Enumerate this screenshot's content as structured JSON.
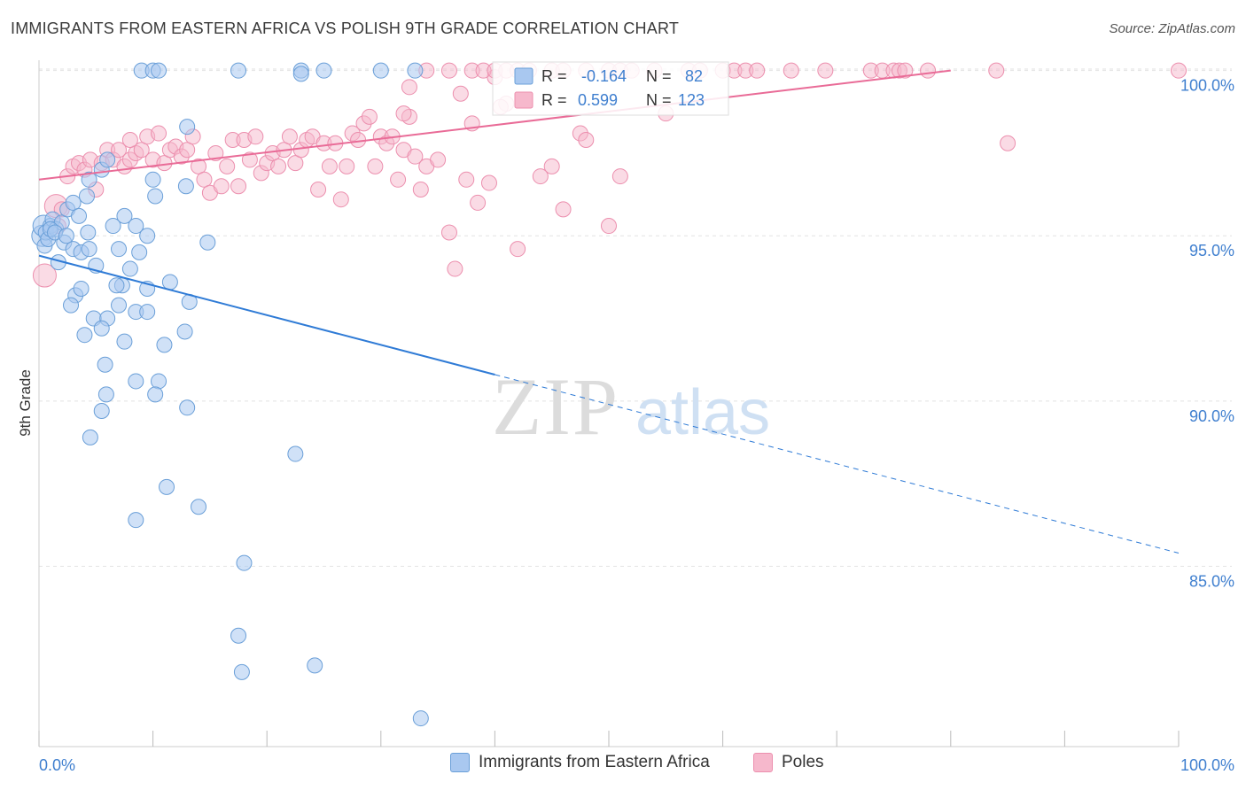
{
  "header": {
    "title": "IMMIGRANTS FROM EASTERN AFRICA VS POLISH 9TH GRADE CORRELATION CHART",
    "source": "Source: ZipAtlas.com"
  },
  "watermark": {
    "zip": "ZIP",
    "atlas": "atlas"
  },
  "colors": {
    "blue_fill": "#a9c8f0",
    "blue_stroke": "#6a9fd8",
    "blue_line": "#2f7bd6",
    "pink_fill": "#f6b8cc",
    "pink_stroke": "#ec8fae",
    "pink_line": "#e96b97",
    "axis_text": "#3f7fcf",
    "grid": "#e2e2e2"
  },
  "stats_box": {
    "rows": [
      {
        "r_label": "R = ",
        "r_value": "-0.164",
        "n_label": "N = ",
        "n_value": "82"
      },
      {
        "r_label": "R = ",
        "r_value": "0.599",
        "n_label": "N = ",
        "n_value": "123"
      }
    ]
  },
  "legend": {
    "items": [
      {
        "label": "Immigrants from Eastern Africa"
      },
      {
        "label": "Poles"
      }
    ]
  },
  "chart_data": {
    "type": "scatter",
    "title": "IMMIGRANTS FROM EASTERN AFRICA VS POLISH 9TH GRADE CORRELATION CHART",
    "xlabel": "",
    "ylabel": "9th Grade",
    "xlim": [
      0,
      100
    ],
    "ylim": [
      80,
      100.5
    ],
    "x_tick_labels": [
      "0.0%",
      "100.0%"
    ],
    "y_ticks": [
      85,
      90,
      95,
      100
    ],
    "y_tick_labels": [
      "85.0%",
      "90.0%",
      "95.0%",
      "100.0%"
    ],
    "grid": true,
    "legend_position": "bottom",
    "series": [
      {
        "name": "Immigrants from Eastern Africa",
        "R": -0.164,
        "N": 82,
        "trend": {
          "x_solid": [
            0,
            40
          ],
          "y_solid": [
            94.4,
            90.8
          ],
          "x_dashed": [
            40,
            100
          ],
          "y_dashed": [
            90.8,
            85.4
          ]
        },
        "points": [
          [
            0.3,
            95.0
          ],
          [
            0.4,
            95.3
          ],
          [
            0.5,
            94.7
          ],
          [
            0.6,
            95.1
          ],
          [
            0.8,
            94.9
          ],
          [
            1.0,
            95.3
          ],
          [
            1.2,
            95.5
          ],
          [
            1.5,
            95.2
          ],
          [
            1.7,
            94.2
          ],
          [
            2.0,
            95.4
          ],
          [
            2.2,
            94.8
          ],
          [
            2.5,
            95.8
          ],
          [
            3.0,
            96.0
          ],
          [
            3.0,
            94.6
          ],
          [
            3.5,
            95.6
          ],
          [
            3.7,
            94.5
          ],
          [
            4.2,
            96.2
          ],
          [
            4.3,
            95.1
          ],
          [
            4.4,
            96.7
          ],
          [
            5.0,
            94.1
          ],
          [
            5.5,
            97.0
          ],
          [
            6.0,
            97.3
          ],
          [
            6.5,
            95.3
          ],
          [
            7.0,
            94.6
          ],
          [
            7.3,
            93.5
          ],
          [
            7.5,
            95.6
          ],
          [
            8.0,
            94.0
          ],
          [
            8.5,
            95.3
          ],
          [
            8.5,
            92.7
          ],
          [
            8.8,
            94.5
          ],
          [
            9.5,
            95.0
          ],
          [
            9.5,
            92.7
          ],
          [
            10.0,
            96.7
          ],
          [
            10.2,
            96.2
          ],
          [
            9.5,
            93.4
          ],
          [
            12.9,
            96.5
          ],
          [
            13.0,
            98.3
          ],
          [
            3.2,
            93.2
          ],
          [
            2.8,
            92.9
          ],
          [
            4.8,
            92.5
          ],
          [
            3.7,
            93.4
          ],
          [
            6.0,
            92.5
          ],
          [
            5.5,
            92.2
          ],
          [
            4.0,
            92.0
          ],
          [
            7.0,
            92.9
          ],
          [
            6.8,
            93.5
          ],
          [
            11.5,
            93.6
          ],
          [
            13.2,
            93.0
          ],
          [
            12.8,
            92.1
          ],
          [
            14.8,
            94.8
          ],
          [
            11.0,
            91.7
          ],
          [
            7.5,
            91.8
          ],
          [
            5.8,
            91.1
          ],
          [
            5.9,
            90.2
          ],
          [
            5.5,
            89.7
          ],
          [
            8.5,
            90.6
          ],
          [
            10.5,
            90.6
          ],
          [
            10.2,
            90.2
          ],
          [
            13.0,
            89.8
          ],
          [
            4.5,
            88.9
          ],
          [
            11.2,
            87.4
          ],
          [
            14.0,
            86.8
          ],
          [
            8.5,
            86.4
          ],
          [
            22.5,
            88.4
          ],
          [
            18.0,
            85.1
          ],
          [
            17.5,
            82.9
          ],
          [
            17.8,
            81.8
          ],
          [
            24.2,
            82.0
          ],
          [
            33.5,
            80.4
          ],
          [
            9.0,
            100.0
          ],
          [
            10.0,
            100.0
          ],
          [
            10.5,
            100.0
          ],
          [
            17.5,
            100.0
          ],
          [
            23.0,
            100.0
          ],
          [
            23.0,
            99.9
          ],
          [
            25.0,
            100.0
          ],
          [
            30.0,
            100.0
          ],
          [
            33.0,
            100.0
          ],
          [
            1.0,
            95.2
          ],
          [
            1.4,
            95.1
          ],
          [
            2.4,
            95.0
          ],
          [
            4.4,
            94.6
          ]
        ]
      },
      {
        "name": "Poles",
        "R": 0.599,
        "N": 123,
        "trend": {
          "x": [
            0,
            80
          ],
          "y": [
            96.7,
            100.0
          ]
        },
        "points": [
          [
            0.5,
            93.8
          ],
          [
            1.5,
            95.9
          ],
          [
            1.7,
            95.3
          ],
          [
            2.0,
            95.8
          ],
          [
            2.5,
            96.8
          ],
          [
            3.0,
            97.1
          ],
          [
            3.5,
            97.2
          ],
          [
            4.0,
            97.0
          ],
          [
            4.5,
            97.3
          ],
          [
            5.0,
            96.4
          ],
          [
            5.5,
            97.2
          ],
          [
            6.0,
            97.6
          ],
          [
            6.5,
            97.3
          ],
          [
            7.0,
            97.6
          ],
          [
            7.5,
            97.1
          ],
          [
            8.0,
            97.3
          ],
          [
            8.5,
            97.5
          ],
          [
            9.0,
            97.6
          ],
          [
            9.5,
            98.0
          ],
          [
            10.0,
            97.3
          ],
          [
            10.5,
            98.1
          ],
          [
            11.0,
            97.2
          ],
          [
            11.5,
            97.6
          ],
          [
            12.0,
            97.7
          ],
          [
            12.5,
            97.4
          ],
          [
            13.0,
            97.6
          ],
          [
            13.5,
            98.0
          ],
          [
            14.0,
            97.1
          ],
          [
            14.5,
            96.7
          ],
          [
            15.0,
            96.3
          ],
          [
            15.5,
            97.5
          ],
          [
            16.0,
            96.5
          ],
          [
            16.5,
            97.1
          ],
          [
            17.0,
            97.9
          ],
          [
            17.5,
            96.5
          ],
          [
            18.0,
            97.9
          ],
          [
            18.5,
            97.3
          ],
          [
            19.0,
            98.0
          ],
          [
            19.5,
            96.9
          ],
          [
            20.0,
            97.2
          ],
          [
            20.5,
            97.5
          ],
          [
            21.0,
            97.1
          ],
          [
            21.5,
            97.6
          ],
          [
            22.0,
            98.0
          ],
          [
            22.5,
            97.2
          ],
          [
            23.0,
            97.6
          ],
          [
            23.5,
            97.9
          ],
          [
            24.0,
            98.0
          ],
          [
            24.5,
            96.4
          ],
          [
            25.0,
            97.8
          ],
          [
            25.5,
            97.1
          ],
          [
            26.0,
            97.8
          ],
          [
            26.5,
            96.1
          ],
          [
            27.0,
            97.1
          ],
          [
            27.5,
            98.1
          ],
          [
            28.0,
            97.9
          ],
          [
            28.5,
            98.4
          ],
          [
            29.0,
            98.6
          ],
          [
            29.5,
            97.1
          ],
          [
            30.0,
            98.0
          ],
          [
            30.5,
            97.8
          ],
          [
            31.0,
            98.0
          ],
          [
            31.5,
            96.7
          ],
          [
            32.0,
            97.6
          ],
          [
            32.5,
            98.6
          ],
          [
            33.0,
            97.4
          ],
          [
            33.5,
            96.4
          ],
          [
            34.0,
            97.1
          ],
          [
            35.0,
            97.3
          ],
          [
            36.0,
            95.1
          ],
          [
            36.5,
            94.0
          ],
          [
            37.0,
            99.3
          ],
          [
            37.5,
            96.7
          ],
          [
            38.0,
            98.4
          ],
          [
            38.5,
            96.0
          ],
          [
            39.5,
            96.6
          ],
          [
            40.0,
            99.8
          ],
          [
            41.0,
            99.0
          ],
          [
            42.0,
            94.6
          ],
          [
            44.0,
            96.8
          ],
          [
            45.0,
            97.1
          ],
          [
            46.0,
            95.8
          ],
          [
            47.5,
            98.1
          ],
          [
            48.0,
            97.9
          ],
          [
            50.0,
            95.3
          ],
          [
            51.0,
            96.8
          ],
          [
            55.0,
            98.7
          ],
          [
            32.5,
            99.5
          ],
          [
            34.0,
            100.0
          ],
          [
            36.0,
            100.0
          ],
          [
            38.0,
            100.0
          ],
          [
            39.0,
            100.0
          ],
          [
            40.0,
            100.0
          ],
          [
            41.0,
            100.0
          ],
          [
            42.0,
            100.0
          ],
          [
            43.0,
            100.0
          ],
          [
            45.0,
            100.0
          ],
          [
            46.0,
            100.0
          ],
          [
            48.0,
            100.0
          ],
          [
            50.0,
            100.0
          ],
          [
            51.0,
            100.0
          ],
          [
            52.0,
            100.0
          ],
          [
            54.0,
            100.0
          ],
          [
            57.0,
            100.0
          ],
          [
            58.0,
            100.0
          ],
          [
            60.0,
            100.0
          ],
          [
            61.0,
            100.0
          ],
          [
            62.0,
            100.0
          ],
          [
            63.0,
            100.0
          ],
          [
            66.0,
            100.0
          ],
          [
            69.0,
            100.0
          ],
          [
            73.0,
            100.0
          ],
          [
            74.0,
            100.0
          ],
          [
            75.0,
            100.0
          ],
          [
            75.5,
            100.0
          ],
          [
            76.0,
            100.0
          ],
          [
            78.0,
            100.0
          ],
          [
            84.0,
            100.0
          ],
          [
            85.0,
            97.8
          ],
          [
            100.0,
            100.0
          ],
          [
            32.0,
            98.7
          ],
          [
            40.5,
            98.9
          ],
          [
            8.0,
            97.9
          ]
        ]
      }
    ]
  }
}
